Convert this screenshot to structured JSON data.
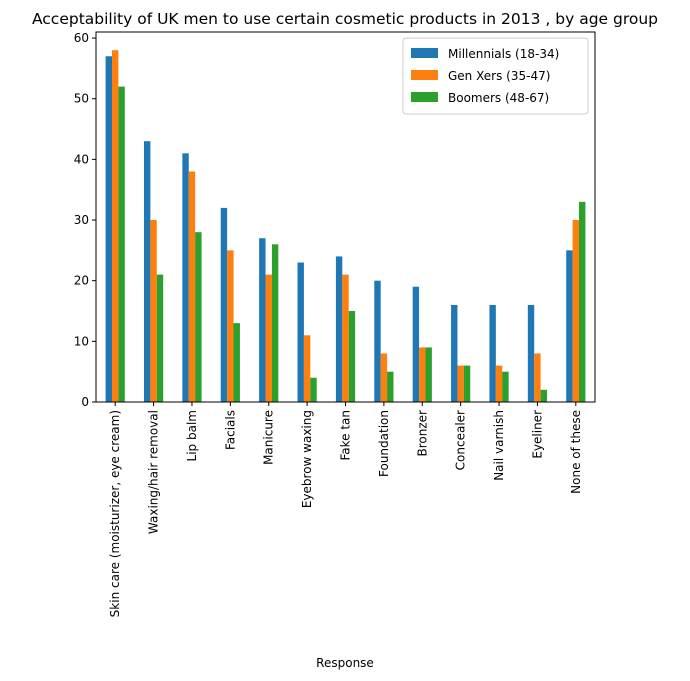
{
  "chart_data": {
    "type": "bar",
    "title": "Acceptability of UK men to use certain cosmetic products in 2013 , by age group",
    "xlabel": "Response",
    "ylabel": "",
    "ylim": [
      0,
      61
    ],
    "yticks": [
      0,
      10,
      20,
      30,
      40,
      50,
      60
    ],
    "grid": false,
    "legend_position": "top-right",
    "categories": [
      "Skin care (moisturizer, eye cream)",
      "Waxing/hair removal",
      "Lip balm",
      "Facials",
      "Manicure",
      "Eyebrow waxing",
      "Fake tan",
      "Foundation",
      "Bronzer",
      "Concealer",
      "Nail varnish",
      "Eyeliner",
      "None of these"
    ],
    "series": [
      {
        "name": "Millennials (18-34)",
        "color": "#1f77b4",
        "values": [
          57,
          43,
          41,
          32,
          27,
          23,
          24,
          20,
          19,
          16,
          16,
          16,
          25
        ]
      },
      {
        "name": "Gen Xers (35-47)",
        "color": "#ff7f0e",
        "values": [
          58,
          30,
          38,
          25,
          21,
          11,
          21,
          8,
          9,
          6,
          6,
          8,
          30
        ]
      },
      {
        "name": "Boomers (48-67)",
        "color": "#2ca02c",
        "values": [
          52,
          21,
          28,
          13,
          26,
          4,
          15,
          5,
          9,
          6,
          5,
          2,
          33
        ]
      }
    ]
  }
}
